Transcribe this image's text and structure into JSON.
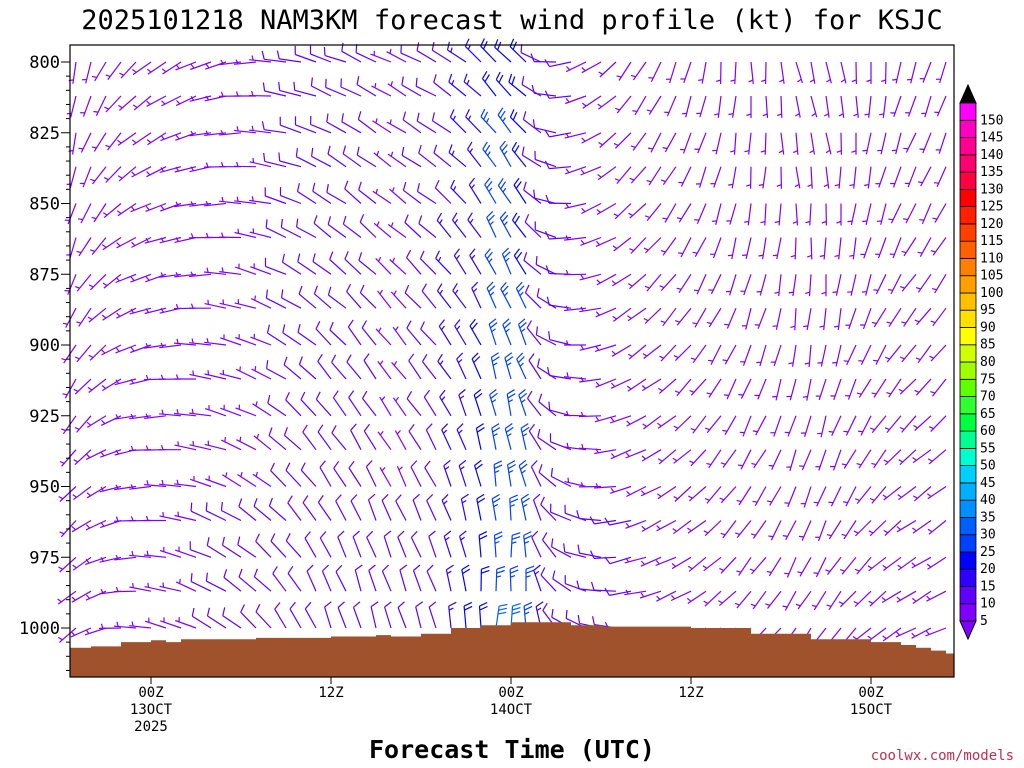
{
  "chart_data": {
    "type": "wind_barb_time_height",
    "title": "2025101218 NAM3KM forecast wind profile (kt) for KSJC",
    "xlabel": "Forecast Time (UTC)",
    "ylabel": "",
    "y_axis": {
      "units": "hPa",
      "range": [
        1012,
        795
      ],
      "ticks": [
        {
          "label": "800",
          "value": 800
        },
        {
          "label": "825",
          "value": 825
        },
        {
          "label": "850",
          "value": 850
        },
        {
          "label": "875",
          "value": 875
        },
        {
          "label": "900",
          "value": 900
        },
        {
          "label": "925",
          "value": 925
        },
        {
          "label": "950",
          "value": 950
        },
        {
          "label": "975",
          "value": 975
        },
        {
          "label": "1000",
          "value": 1000
        }
      ]
    },
    "x_axis": {
      "units": "forecast hour",
      "range": [
        0,
        60
      ],
      "ticks": [
        {
          "hour": 6,
          "lines": [
            "00Z",
            "13OCT",
            "2025"
          ]
        },
        {
          "hour": 18,
          "lines": [
            "12Z"
          ]
        },
        {
          "hour": 30,
          "lines": [
            "00Z",
            "14OCT"
          ]
        },
        {
          "hour": 42,
          "lines": [
            "12Z"
          ]
        },
        {
          "hour": 54,
          "lines": [
            "00Z",
            "15OCT"
          ]
        }
      ]
    },
    "surface_pressure": [
      {
        "hour": 0,
        "hpa": 1007
      },
      {
        "hour": 2,
        "hpa": 1006.5
      },
      {
        "hour": 4,
        "hpa": 1005
      },
      {
        "hour": 6,
        "hpa": 1004.3
      },
      {
        "hour": 7,
        "hpa": 1005
      },
      {
        "hour": 8,
        "hpa": 1004
      },
      {
        "hour": 10,
        "hpa": 1004
      },
      {
        "hour": 13,
        "hpa": 1003.5
      },
      {
        "hour": 18,
        "hpa": 1003
      },
      {
        "hour": 21,
        "hpa": 1002.5
      },
      {
        "hour": 22,
        "hpa": 1003
      },
      {
        "hour": 24,
        "hpa": 1002
      },
      {
        "hour": 26,
        "hpa": 1000
      },
      {
        "hour": 28,
        "hpa": 999
      },
      {
        "hour": 30,
        "hpa": 998
      },
      {
        "hour": 34,
        "hpa": 999
      },
      {
        "hour": 36,
        "hpa": 999.5
      },
      {
        "hour": 38,
        "hpa": 999.5
      },
      {
        "hour": 42,
        "hpa": 1000
      },
      {
        "hour": 46,
        "hpa": 1002
      },
      {
        "hour": 50,
        "hpa": 1004
      },
      {
        "hour": 54,
        "hpa": 1005
      },
      {
        "hour": 56,
        "hpa": 1006
      },
      {
        "hour": 57,
        "hpa": 1007
      },
      {
        "hour": 58,
        "hpa": 1008
      },
      {
        "hour": 59,
        "hpa": 1009
      },
      {
        "hour": 60,
        "hpa": 1009
      }
    ],
    "wind_barbs": {
      "units": "kt",
      "time_start_hour": 0,
      "time_step_hours": 1,
      "time_count": 61,
      "levels_hpa": [
        800,
        812,
        825,
        837,
        850,
        862,
        875,
        887,
        900,
        912,
        925,
        937,
        950,
        962,
        975,
        987,
        1000
      ],
      "speed_by_time_kt": [
        8,
        7,
        7,
        7,
        7,
        7,
        8,
        8,
        8,
        8,
        10,
        10,
        10,
        10,
        10,
        12,
        12,
        12,
        12,
        12,
        12,
        12,
        10,
        10,
        12,
        14,
        17,
        20,
        22,
        30,
        30,
        28,
        15,
        12,
        12,
        10,
        10,
        10,
        10,
        8,
        8,
        8,
        8,
        8,
        7,
        7,
        7,
        7,
        7,
        7,
        7,
        7,
        7,
        7,
        7,
        7,
        7,
        7,
        7,
        7,
        7
      ],
      "direction_by_time_deg": [
        200,
        210,
        220,
        230,
        240,
        250,
        255,
        260,
        265,
        270,
        275,
        280,
        285,
        290,
        295,
        300,
        305,
        310,
        315,
        315,
        320,
        320,
        320,
        320,
        320,
        320,
        325,
        330,
        335,
        340,
        340,
        335,
        320,
        300,
        280,
        270,
        260,
        250,
        240,
        235,
        230,
        225,
        220,
        215,
        210,
        205,
        200,
        200,
        195,
        190,
        190,
        190,
        195,
        200,
        205,
        210,
        215,
        220,
        220,
        220,
        220
      ]
    },
    "colorbar": {
      "units": "kt",
      "levels": [
        5,
        10,
        15,
        20,
        25,
        30,
        35,
        40,
        45,
        50,
        55,
        60,
        65,
        70,
        75,
        80,
        85,
        90,
        95,
        100,
        105,
        110,
        115,
        120,
        125,
        130,
        135,
        140,
        145,
        150
      ],
      "colors": [
        "#8000ff",
        "#6000ff",
        "#3000ff",
        "#0000ff",
        "#0040ff",
        "#0060ff",
        "#0090ff",
        "#00b0ff",
        "#00d0ff",
        "#00ffd0",
        "#00ff90",
        "#00ff40",
        "#30ff30",
        "#60ff00",
        "#a0ff00",
        "#d0ff00",
        "#ffff00",
        "#ffe000",
        "#ffc000",
        "#ffa000",
        "#ff8000",
        "#ff6000",
        "#ff4000",
        "#ff2000",
        "#ff0000",
        "#ff0040",
        "#ff0070",
        "#ff0090",
        "#ff00c0",
        "#ff00ff"
      ],
      "min_arrow_color": "#8000ff",
      "max_arrow_color": "#000000"
    },
    "terrain_color": "#a0522d",
    "credit": "coolwx.com/models"
  }
}
